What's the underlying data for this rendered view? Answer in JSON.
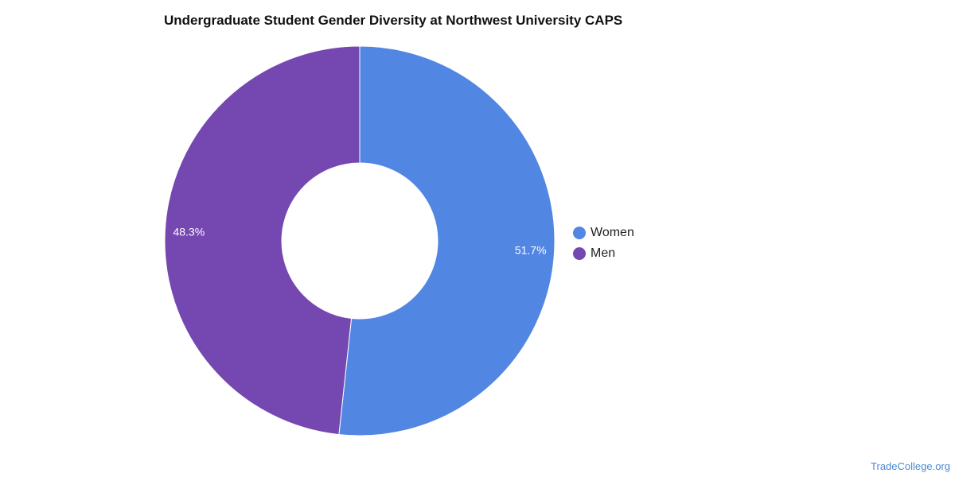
{
  "chart_data": {
    "type": "pie",
    "title": "Undergraduate Student Gender Diversity at Northwest University CAPS",
    "donut": true,
    "slices": [
      {
        "label": "Women",
        "value": 51.7,
        "display": "51.7%",
        "color": "#5286e3"
      },
      {
        "label": "Men",
        "value": 48.3,
        "display": "48.3%",
        "color": "#7547b0"
      }
    ],
    "legend_position": "right"
  },
  "legend": {
    "items": [
      {
        "label": "Women",
        "color": "#5286e3"
      },
      {
        "label": "Men",
        "color": "#7547b0"
      }
    ]
  },
  "watermark": "TradeCollege.org"
}
